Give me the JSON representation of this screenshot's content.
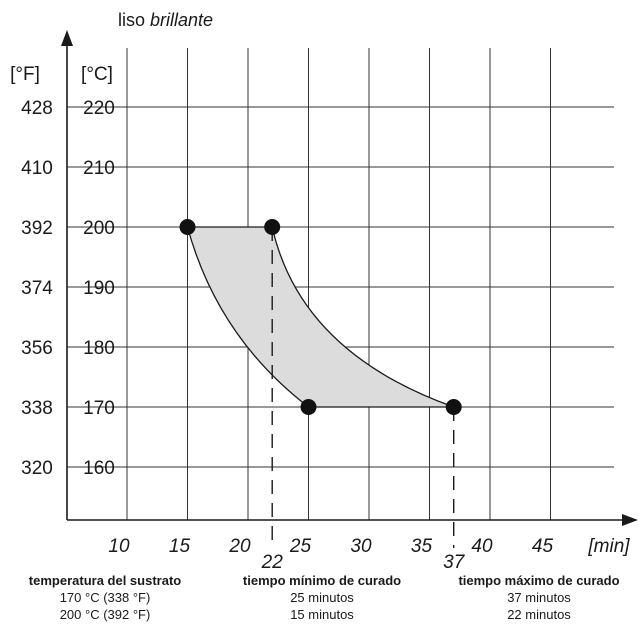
{
  "chart_data": {
    "type": "area",
    "title": "liso brillante",
    "title_parts": [
      "liso ",
      "brillante"
    ],
    "xlabel": "[min]",
    "ylabel_f": "[°F]",
    "ylabel_c": "[°C]",
    "xlim": [
      5,
      50
    ],
    "ylim": [
      150,
      225
    ],
    "x_ticks": [
      10,
      15,
      20,
      25,
      30,
      35,
      40,
      45
    ],
    "x_extra_ticks": [
      22,
      37
    ],
    "y_ticks_c": [
      160,
      170,
      180,
      190,
      200,
      210,
      220
    ],
    "y_ticks_f": [
      320,
      338,
      356,
      374,
      392,
      410,
      428
    ],
    "grid": true,
    "fill_color": "#dcdcdc",
    "line_color": "#1a1a1a",
    "points": [
      {
        "x": 15,
        "y": 200
      },
      {
        "x": 22,
        "y": 200
      },
      {
        "x": 25,
        "y": 170
      },
      {
        "x": 37,
        "y": 170
      }
    ],
    "dashed_drops": [
      22,
      37
    ]
  },
  "table": {
    "columns": [
      {
        "header": "temperatura del sustrato",
        "rows": [
          "170 °C (338 °F)",
          "200 °C (392 °F)"
        ]
      },
      {
        "header": "tiempo mínimo de curado",
        "rows": [
          "25 minutos",
          "15 minutos"
        ]
      },
      {
        "header": "tiempo máximo de curado",
        "rows": [
          "37 minutos",
          "22 minutos"
        ]
      }
    ]
  }
}
